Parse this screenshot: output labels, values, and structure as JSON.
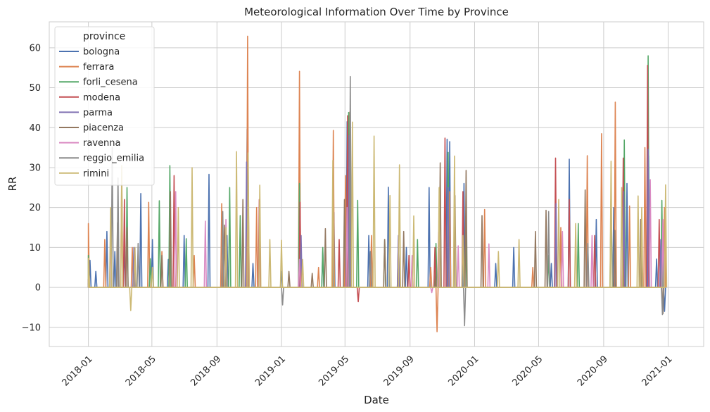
{
  "chart_data": {
    "type": "line",
    "title": "Meteorological Information Over Time by Province",
    "xlabel": "Date",
    "ylabel": "RR",
    "xlim": [
      "2017-10-19",
      "2021-03-09"
    ],
    "ylim": [
      -14.8,
      66.5
    ],
    "x_ticks": [
      "2018-01",
      "2018-05",
      "2018-09",
      "2019-01",
      "2019-05",
      "2019-09",
      "2020-01",
      "2020-05",
      "2020-09",
      "2021-01"
    ],
    "y_ticks": [
      -10,
      0,
      10,
      20,
      30,
      40,
      50,
      60
    ],
    "grid": true,
    "legend": {
      "title": "province",
      "position": "top-left"
    },
    "series": [
      {
        "name": "bologna",
        "color": "#4c72b0",
        "points": [
          [
            "2018-01-01",
            0
          ],
          [
            "2018-01-04",
            6.8
          ],
          [
            "2018-01-15",
            4
          ],
          [
            "2018-02-05",
            14
          ],
          [
            "2018-02-20",
            9
          ],
          [
            "2018-03-10",
            11
          ],
          [
            "2018-04-10",
            23.5
          ],
          [
            "2018-05-02",
            12
          ],
          [
            "2018-06-01",
            7
          ],
          [
            "2018-07-01",
            13
          ],
          [
            "2018-08-17",
            28.3
          ],
          [
            "2018-09-20",
            13
          ],
          [
            "2018-10-28",
            39.7
          ],
          [
            "2018-11-08",
            6
          ],
          [
            "2019-01-01",
            4
          ],
          [
            "2019-02-04",
            11
          ],
          [
            "2019-03-20",
            9
          ],
          [
            "2019-04-10",
            18.8
          ],
          [
            "2019-05-05",
            41.5
          ],
          [
            "2019-06-15",
            13
          ],
          [
            "2019-07-22",
            25.1
          ],
          [
            "2019-08-25",
            10
          ],
          [
            "2019-10-07",
            25
          ],
          [
            "2019-11-10",
            37.1
          ],
          [
            "2019-11-15",
            36.5
          ],
          [
            "2019-12-12",
            26
          ],
          [
            "2020-02-10",
            6
          ],
          [
            "2020-03-15",
            10
          ],
          [
            "2020-05-25",
            6
          ],
          [
            "2020-06-28",
            32.1
          ],
          [
            "2020-08-18",
            17
          ],
          [
            "2020-09-20",
            20
          ],
          [
            "2020-10-15",
            26
          ],
          [
            "2020-11-25",
            33
          ],
          [
            "2020-12-10",
            7.1
          ],
          [
            "2020-12-25",
            -6
          ]
        ]
      },
      {
        "name": "ferrara",
        "color": "#dd8452",
        "points": [
          [
            "2018-01-01",
            16
          ],
          [
            "2018-02-01",
            12
          ],
          [
            "2018-03-05",
            27.7
          ],
          [
            "2018-03-25",
            10
          ],
          [
            "2018-04-25",
            21.3
          ],
          [
            "2018-05-20",
            9
          ],
          [
            "2018-07-20",
            8
          ],
          [
            "2018-09-10",
            21
          ],
          [
            "2018-10-29",
            62.9
          ],
          [
            "2018-11-15",
            20
          ],
          [
            "2019-02-04",
            54.1
          ],
          [
            "2019-03-12",
            5
          ],
          [
            "2019-04-09",
            39.3
          ],
          [
            "2019-05-02",
            28
          ],
          [
            "2019-05-10",
            43.9
          ],
          [
            "2019-06-20",
            13
          ],
          [
            "2019-08-10",
            12
          ],
          [
            "2019-10-10",
            5
          ],
          [
            "2019-10-22",
            -11.1
          ],
          [
            "2019-11-15",
            24
          ],
          [
            "2020-01-20",
            19.5
          ],
          [
            "2020-04-20",
            5
          ],
          [
            "2020-06-12",
            15
          ],
          [
            "2020-08-01",
            33
          ],
          [
            "2020-08-28",
            38.5
          ],
          [
            "2020-09-23",
            46.4
          ],
          [
            "2020-10-20",
            20.4
          ],
          [
            "2020-11-18",
            35
          ],
          [
            "2020-12-25",
            20
          ]
        ]
      },
      {
        "name": "forli_cesena",
        "color": "#55a868",
        "points": [
          [
            "2018-01-01",
            8
          ],
          [
            "2018-03-15",
            25
          ],
          [
            "2018-04-28",
            7.2
          ],
          [
            "2018-05-15",
            21.7
          ],
          [
            "2018-06-04",
            30.5
          ],
          [
            "2018-07-05",
            12.2
          ],
          [
            "2018-09-25",
            25
          ],
          [
            "2018-10-15",
            18
          ],
          [
            "2019-02-04",
            26
          ],
          [
            "2019-03-20",
            10
          ],
          [
            "2019-05-08",
            43.8
          ],
          [
            "2019-05-25",
            21.8
          ],
          [
            "2019-07-15",
            12
          ],
          [
            "2019-09-15",
            12
          ],
          [
            "2019-10-20",
            11
          ],
          [
            "2019-11-12",
            33.8
          ],
          [
            "2019-12-15",
            15
          ],
          [
            "2020-05-20",
            8
          ],
          [
            "2020-07-15",
            16
          ],
          [
            "2020-09-15",
            24
          ],
          [
            "2020-10-10",
            36.9
          ],
          [
            "2020-11-24",
            58
          ],
          [
            "2020-12-20",
            21.8
          ]
        ]
      },
      {
        "name": "modena",
        "color": "#c44e52",
        "points": [
          [
            "2018-01-01",
            2
          ],
          [
            "2018-03-10",
            22
          ],
          [
            "2018-06-12",
            28
          ],
          [
            "2018-10-30",
            27
          ],
          [
            "2018-11-20",
            22
          ],
          [
            "2019-02-05",
            21.3
          ],
          [
            "2019-04-20",
            12
          ],
          [
            "2019-05-06",
            43
          ],
          [
            "2019-05-26",
            -3.6
          ],
          [
            "2019-08-30",
            8
          ],
          [
            "2019-10-18",
            10
          ],
          [
            "2019-11-06",
            37.4
          ],
          [
            "2019-12-10",
            24
          ],
          [
            "2020-06-02",
            32.4
          ],
          [
            "2020-06-28",
            22
          ],
          [
            "2020-08-15",
            13
          ],
          [
            "2020-10-08",
            32.4
          ],
          [
            "2020-11-23",
            55.6
          ],
          [
            "2020-12-15",
            17
          ]
        ]
      },
      {
        "name": "parma",
        "color": "#8172b3",
        "points": [
          [
            "2018-01-01",
            1
          ],
          [
            "2018-03-28",
            10
          ],
          [
            "2018-10-27",
            31.4
          ],
          [
            "2019-02-07",
            13
          ],
          [
            "2019-05-09",
            38
          ],
          [
            "2019-08-10",
            13
          ],
          [
            "2019-11-12",
            25
          ],
          [
            "2020-06-03",
            21
          ],
          [
            "2020-10-09",
            24
          ],
          [
            "2020-11-24",
            34.6
          ],
          [
            "2020-12-18",
            12
          ]
        ]
      },
      {
        "name": "piacenza",
        "color": "#937860",
        "points": [
          [
            "2018-01-01",
            1
          ],
          [
            "2018-02-25",
            16.2
          ],
          [
            "2018-03-15",
            15
          ],
          [
            "2018-05-20",
            8
          ],
          [
            "2018-06-05",
            24
          ],
          [
            "2018-09-15",
            15.6
          ],
          [
            "2018-10-20",
            22
          ],
          [
            "2019-01-15",
            4
          ],
          [
            "2019-02-28",
            3.5
          ],
          [
            "2019-03-25",
            14.7
          ],
          [
            "2019-04-30",
            22
          ],
          [
            "2019-07-15",
            12
          ],
          [
            "2019-08-20",
            14
          ],
          [
            "2019-10-28",
            31.2
          ],
          [
            "2019-11-25",
            23
          ],
          [
            "2019-12-16",
            29.3
          ],
          [
            "2020-01-15",
            18
          ],
          [
            "2020-04-25",
            14
          ],
          [
            "2020-05-15",
            19.3
          ],
          [
            "2020-07-28",
            24.4
          ],
          [
            "2020-09-22",
            14.3
          ],
          [
            "2020-11-10",
            17
          ],
          [
            "2020-12-22",
            -6.6
          ]
        ]
      },
      {
        "name": "ravenna",
        "color": "#da8bc3",
        "points": [
          [
            "2018-01-01",
            0.5
          ],
          [
            "2018-02-12",
            13.5
          ],
          [
            "2018-06-15",
            24
          ],
          [
            "2018-08-10",
            16.6
          ],
          [
            "2018-09-18",
            17
          ],
          [
            "2019-02-04",
            7
          ],
          [
            "2019-05-05",
            20
          ],
          [
            "2019-09-05",
            8
          ],
          [
            "2019-10-12",
            -1.3
          ],
          [
            "2019-10-25",
            13.8
          ],
          [
            "2019-12-01",
            10.4
          ],
          [
            "2020-01-28",
            10.9
          ],
          [
            "2020-06-15",
            14
          ],
          [
            "2020-08-10",
            13
          ],
          [
            "2020-11-28",
            27
          ],
          [
            "2020-12-22",
            17
          ]
        ]
      },
      {
        "name": "reggio_emilia",
        "color": "#8c8c8c",
        "points": [
          [
            "2018-01-01",
            2
          ],
          [
            "2018-02-15",
            35
          ],
          [
            "2018-02-26",
            27.4
          ],
          [
            "2018-04-05",
            11
          ],
          [
            "2018-09-12",
            19
          ],
          [
            "2019-01-03",
            -4.4
          ],
          [
            "2019-05-11",
            52.8
          ],
          [
            "2019-06-18",
            9
          ],
          [
            "2019-12-13",
            -9.6
          ],
          [
            "2020-05-20",
            19
          ],
          [
            "2020-08-02",
            11
          ],
          [
            "2020-12-21",
            -6.8
          ]
        ]
      },
      {
        "name": "rimini",
        "color": "#ccb974",
        "points": [
          [
            "2018-01-01",
            7.3
          ],
          [
            "2018-02-12",
            20
          ],
          [
            "2018-03-05",
            30.5
          ],
          [
            "2018-03-22",
            -5.8
          ],
          [
            "2018-03-30",
            10
          ],
          [
            "2018-05-02",
            5
          ],
          [
            "2018-06-20",
            20
          ],
          [
            "2018-07-16",
            30
          ],
          [
            "2018-09-18",
            15
          ],
          [
            "2018-10-08",
            34
          ],
          [
            "2018-10-30",
            33.7
          ],
          [
            "2018-11-21",
            25.6
          ],
          [
            "2018-12-10",
            12
          ],
          [
            "2019-01-01",
            11.8
          ],
          [
            "2019-02-10",
            7
          ],
          [
            "2019-04-08",
            31.8
          ],
          [
            "2019-05-15",
            41.4
          ],
          [
            "2019-06-25",
            37.9
          ],
          [
            "2019-07-25",
            23
          ],
          [
            "2019-08-12",
            30.7
          ],
          [
            "2019-09-08",
            17.9
          ],
          [
            "2019-10-26",
            25
          ],
          [
            "2019-11-24",
            32.9
          ],
          [
            "2019-12-10",
            13
          ],
          [
            "2020-02-15",
            9
          ],
          [
            "2020-03-25",
            12
          ],
          [
            "2020-06-08",
            22
          ],
          [
            "2020-07-10",
            16
          ],
          [
            "2020-09-15",
            31.6
          ],
          [
            "2020-10-05",
            25
          ],
          [
            "2020-11-05",
            22.9
          ],
          [
            "2020-11-12",
            20
          ],
          [
            "2020-12-27",
            25.7
          ]
        ]
      }
    ]
  }
}
